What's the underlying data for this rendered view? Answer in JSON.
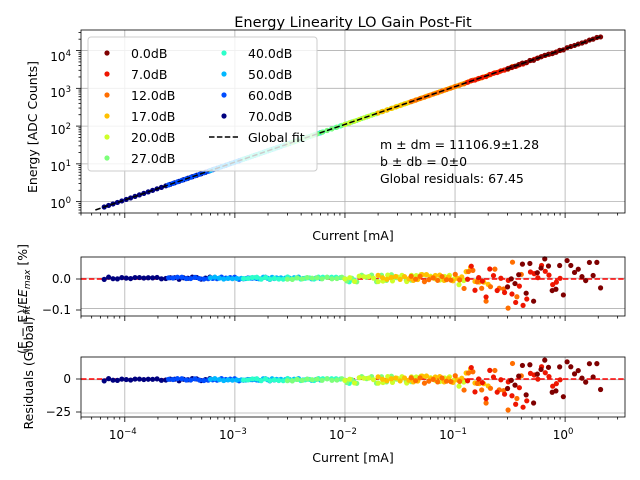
{
  "chart_data": {
    "type": "scatter",
    "title": "Energy Linearity LO Gain Post-Fit",
    "x_scale": "log",
    "xlim": [
      4e-05,
      3.5
    ],
    "x_tick_labels": [
      "10",
      "10",
      "10",
      "10",
      "10"
    ],
    "x_tick_exponents": [
      "−4",
      "−3",
      "−2",
      "−1",
      "0"
    ],
    "panels": {
      "top": {
        "xlabel": "Current [mA]",
        "ylabel": "Energy [ADC Counts]",
        "y_scale": "log",
        "ylim": [
          0.5,
          35000
        ],
        "y_tick_labels": [
          "10",
          "10",
          "10",
          "10",
          "10"
        ],
        "y_tick_exponents": [
          "0",
          "1",
          "2",
          "3",
          "4"
        ],
        "grid": true
      },
      "middle": {
        "ylabel_line1": "(E − E",
        "ylabel_line2": ")/E",
        "ylabel_fit": "fit",
        "ylabel_max": "max",
        "ylabel_unit": " [%]",
        "ylim": [
          -0.125,
          0.07
        ],
        "y_tick_labels": [
          "0.0",
          "−0.1"
        ],
        "grid": true
      },
      "bottom": {
        "xlabel": "Current [mA]",
        "ylabel": "Residuals (Global)",
        "ylim": [
          -28,
          17
        ],
        "y_tick_labels": [
          "0",
          "−25"
        ],
        "grid": true
      }
    },
    "annotations": [
      "m ± dm = 11106.9±1.28",
      "b ± db = 0±0",
      "Global residuals: 67.45"
    ],
    "legend_position": "upper-left",
    "global_fit": {
      "name": "Global fit",
      "slope": 11106.9,
      "intercept": 0,
      "color": "#000000",
      "style": "dashed"
    },
    "series": [
      {
        "name": "0.0dB",
        "color": "#7f0000",
        "x_range": [
          0.3,
          2.1
        ]
      },
      {
        "name": "7.0dB",
        "color": "#ee1500",
        "x_range": [
          0.13,
          0.9
        ]
      },
      {
        "name": "12.0dB",
        "color": "#ff6e00",
        "x_range": [
          0.04,
          0.4
        ]
      },
      {
        "name": "17.0dB",
        "color": "#ffc000",
        "x_range": [
          0.02,
          0.2
        ]
      },
      {
        "name": "20.0dB",
        "color": "#ceff29",
        "x_range": [
          0.01,
          0.12
        ]
      },
      {
        "name": "27.0dB",
        "color": "#7dff7a",
        "x_range": [
          0.003,
          0.04
        ]
      },
      {
        "name": "40.0dB",
        "color": "#2cffca",
        "x_range": [
          0.0012,
          0.012
        ]
      },
      {
        "name": "50.0dB",
        "color": "#00b7ff",
        "x_range": [
          0.0006,
          0.006
        ]
      },
      {
        "name": "60.0dB",
        "color": "#004cff",
        "x_range": [
          0.00025,
          0.0025
        ]
      },
      {
        "name": "70.0dB",
        "color": "#00007f",
        "x_range": [
          6.5e-05,
          0.00065
        ]
      }
    ]
  }
}
